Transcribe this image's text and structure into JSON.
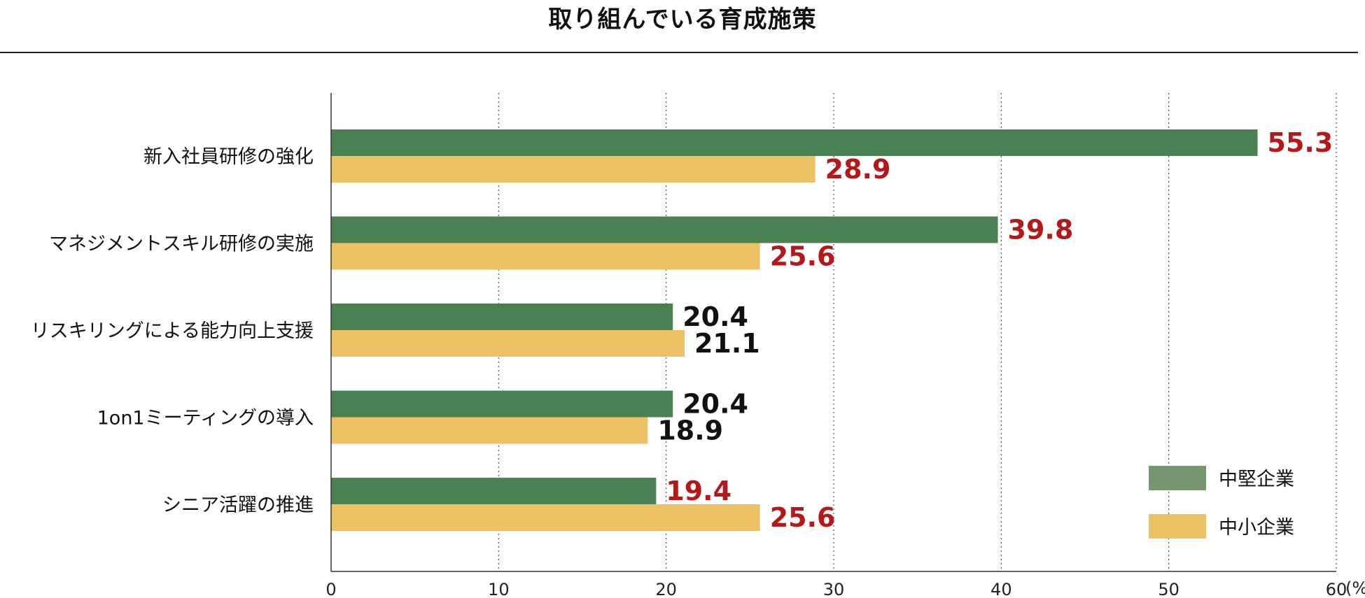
{
  "chart_data": {
    "type": "bar",
    "orientation": "horizontal",
    "title": "取り組んでいる育成施策",
    "categories": [
      "新入社員研修の強化",
      "マネジメントスキル研修の実施",
      "リスキリングによる能力向上支援",
      "1on1ミーティングの導入",
      "シニア活躍の推進"
    ],
    "series": [
      {
        "name": "中堅企業",
        "color": "#4b8052",
        "legend_color": "#76966f",
        "values": [
          55.3,
          39.8,
          20.4,
          20.4,
          19.4
        ],
        "label_colors": [
          "#b3181a",
          "#b3181a",
          "#111111",
          "#111111",
          "#b3181a"
        ]
      },
      {
        "name": "中小企業",
        "color": "#edc265",
        "legend_color": "#edc265",
        "values": [
          28.9,
          25.6,
          21.1,
          18.9,
          25.6
        ],
        "label_colors": [
          "#b3181a",
          "#b3181a",
          "#111111",
          "#111111",
          "#b3181a"
        ]
      }
    ],
    "value_labels": [
      [
        "55.3",
        "39.8",
        "20.4",
        "20.4",
        "19.4"
      ],
      [
        "28.9",
        "25.6",
        "21.1",
        "18.9",
        "25.6"
      ]
    ],
    "xlim": [
      0,
      60
    ],
    "xticks": [
      "0",
      "10",
      "20",
      "30",
      "40",
      "50",
      "60"
    ],
    "x_unit": "(%)",
    "grid": "vertical dotted",
    "legend_position": "bottom-right"
  }
}
